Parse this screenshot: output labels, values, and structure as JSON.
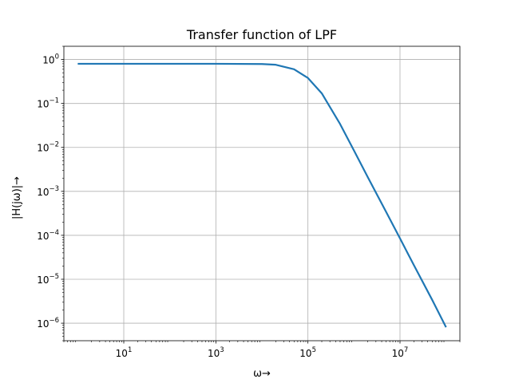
{
  "chart_data": {
    "type": "line",
    "title": "Transfer function of LPF",
    "xlabel": "ω→",
    "ylabel": "|H(jω)|→",
    "xscale": "log",
    "yscale": "log",
    "xlim": [
      0.5,
      200000000
    ],
    "ylim": [
      4e-07,
      2
    ],
    "grid": true,
    "line_color": "#1f77b4",
    "x_ticks": [
      {
        "base": "10",
        "exp": "1",
        "value": 10
      },
      {
        "base": "10",
        "exp": "3",
        "value": 1000
      },
      {
        "base": "10",
        "exp": "5",
        "value": 100000
      },
      {
        "base": "10",
        "exp": "7",
        "value": 10000000
      }
    ],
    "y_ticks": [
      {
        "base": "10",
        "exp": "0",
        "value": 1
      },
      {
        "base": "10",
        "exp": "−1",
        "value": 0.1
      },
      {
        "base": "10",
        "exp": "−2",
        "value": 0.01
      },
      {
        "base": "10",
        "exp": "−3",
        "value": 0.001
      },
      {
        "base": "10",
        "exp": "−4",
        "value": 0.0001
      },
      {
        "base": "10",
        "exp": "−5",
        "value": 1e-05
      },
      {
        "base": "10",
        "exp": "−6",
        "value": 1e-06
      }
    ],
    "series": [
      {
        "x": [
          1,
          10,
          100,
          1000,
          10000,
          20000,
          50000,
          100000,
          200000,
          500000,
          1000000,
          2000000,
          5000000,
          10000000,
          20000000,
          50000000,
          100000000
        ],
        "y": [
          0.8,
          0.8,
          0.8,
          0.8,
          0.79,
          0.76,
          0.6,
          0.38,
          0.17,
          0.034,
          0.0085,
          0.0021,
          0.00034,
          8.5e-05,
          2.1e-05,
          3.4e-06,
          8.1e-07
        ]
      }
    ]
  }
}
